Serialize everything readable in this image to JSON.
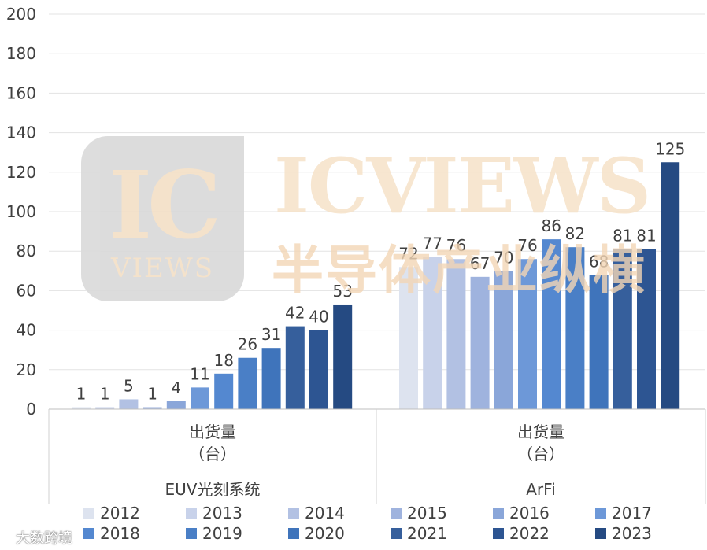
{
  "watermark": {
    "logo_big": "IC",
    "logo_small": "VIEWS",
    "brand": "ICVIEWS",
    "brand_cn": "半导体产业纵横",
    "source": "大数跨境"
  },
  "chart_data": {
    "type": "bar",
    "ylim": [
      0,
      200
    ],
    "yticks": [
      0,
      20,
      40,
      60,
      80,
      100,
      120,
      140,
      160,
      180,
      200
    ],
    "grid": true,
    "legend_position": "bottom",
    "series_colors": {
      "2012": "#dde3ef",
      "2013": "#c8d2ea",
      "2014": "#b2c1e3",
      "2015": "#9fb3de",
      "2016": "#8aa6d9",
      "2017": "#6d98d8",
      "2018": "#5488d0",
      "2019": "#4a7fc6",
      "2020": "#3f74bb",
      "2021": "#365f9c",
      "2022": "#2d5592",
      "2023": "#254a82"
    },
    "groups": [
      {
        "name": "EUV光刻系统",
        "unit_label_1": "出货量",
        "unit_label_2": "（台）",
        "points": [
          {
            "year": "2012",
            "value": 1
          },
          {
            "year": "2013",
            "value": 1
          },
          {
            "year": "2014",
            "value": 5
          },
          {
            "year": "2015",
            "value": 1
          },
          {
            "year": "2016",
            "value": 4
          },
          {
            "year": "2017",
            "value": 11
          },
          {
            "year": "2018",
            "value": 18
          },
          {
            "year": "2019",
            "value": 26
          },
          {
            "year": "2020",
            "value": 31
          },
          {
            "year": "2021",
            "value": 42
          },
          {
            "year": "2022",
            "value": 40
          },
          {
            "year": "2023",
            "value": 53
          }
        ]
      },
      {
        "name": "ArFi",
        "unit_label_1": "出货量",
        "unit_label_2": "（台）",
        "points": [
          {
            "year": "2012",
            "value": 72
          },
          {
            "year": "2013",
            "value": 77
          },
          {
            "year": "2014",
            "value": 76
          },
          {
            "year": "2015",
            "value": 67
          },
          {
            "year": "2016",
            "value": 70
          },
          {
            "year": "2017",
            "value": 76
          },
          {
            "year": "2018",
            "value": 86
          },
          {
            "year": "2019",
            "value": 82
          },
          {
            "year": "2020",
            "value": 68
          },
          {
            "year": "2021",
            "value": 81
          },
          {
            "year": "2022",
            "value": 81
          },
          {
            "year": "2023",
            "value": 125
          }
        ]
      }
    ],
    "legend": [
      "2012",
      "2013",
      "2014",
      "2015",
      "2016",
      "2017",
      "2018",
      "2019",
      "2020",
      "2021",
      "2022",
      "2023"
    ]
  }
}
